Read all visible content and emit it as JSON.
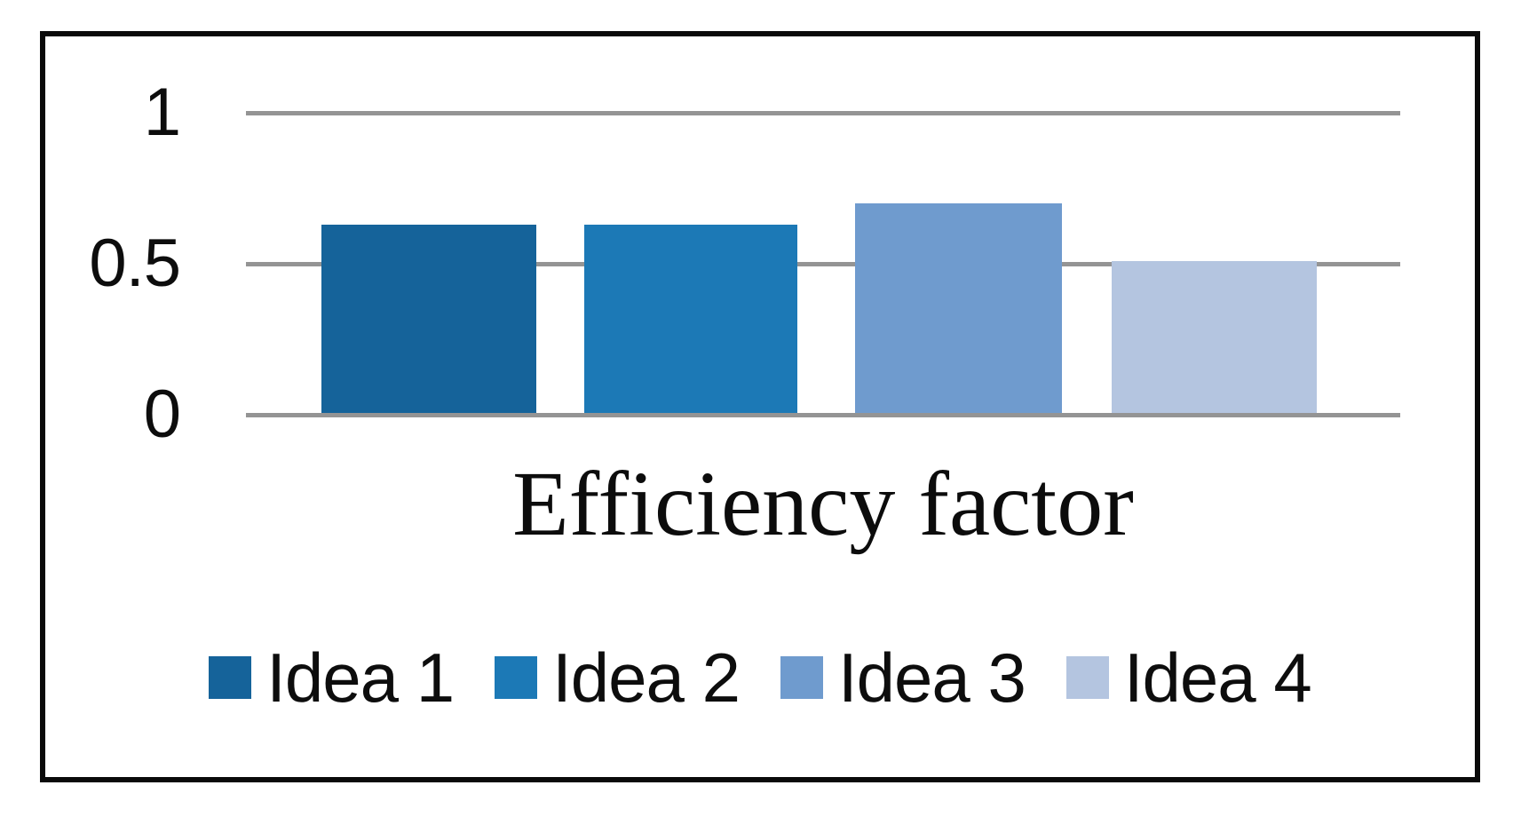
{
  "figure": {
    "background_color": "#ffffff",
    "frame_border_color": "#0a0a0a"
  },
  "chart_data": {
    "type": "bar",
    "title": "Efficiency factor",
    "xlabel": "",
    "ylabel": "",
    "categories": [
      "Idea 1",
      "Idea 2",
      "Idea 3",
      "Idea 4"
    ],
    "values": [
      0.63,
      0.63,
      0.7,
      0.51
    ],
    "bar_colors": [
      "#15639A",
      "#1C79B6",
      "#6F9BCE",
      "#B4C5E0"
    ],
    "ylim": [
      0,
      1
    ],
    "yticks": [
      {
        "label": "1",
        "value": 1.0
      },
      {
        "label": "0.5",
        "value": 0.5
      },
      {
        "label": "0",
        "value": 0.0
      }
    ],
    "grid": "horizontal gridlines on",
    "gridline_color": "#949494",
    "legend_position": "bottom",
    "legend_entries": [
      "Idea 1",
      "Idea 2",
      "Idea 3",
      "Idea 4"
    ]
  }
}
